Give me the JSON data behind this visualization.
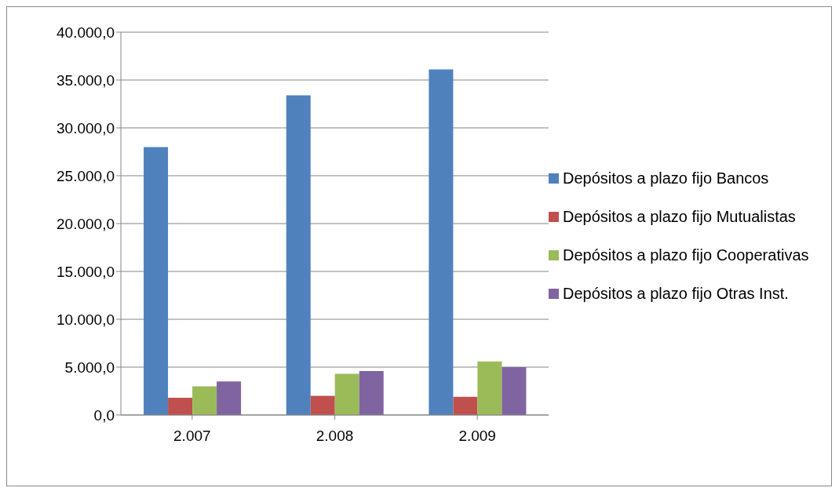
{
  "chart_data": {
    "type": "bar",
    "categories": [
      "2.007",
      "2.008",
      "2.009"
    ],
    "series": [
      {
        "name": "Depósitos a plazo fijo Bancos",
        "color": "#4f81bd",
        "values": [
          28000,
          33400,
          36100
        ]
      },
      {
        "name": "Depósitos a plazo fijo Mutualistas",
        "color": "#c0504d",
        "values": [
          1800,
          2000,
          1900
        ]
      },
      {
        "name": "Depósitos a plazo fijo Cooperativas",
        "color": "#9bbb59",
        "values": [
          3000,
          4300,
          5600
        ]
      },
      {
        "name": "Depósitos a plazo fijo Otras Inst.",
        "color": "#8064a2",
        "values": [
          3500,
          4600,
          5000
        ]
      }
    ],
    "ylim": [
      0,
      40000
    ],
    "yticks": [
      {
        "value": 0,
        "label": "0,0"
      },
      {
        "value": 5000,
        "label": "5.000,0"
      },
      {
        "value": 10000,
        "label": "10.000,0"
      },
      {
        "value": 15000,
        "label": "15.000,0"
      },
      {
        "value": 20000,
        "label": "20.000,0"
      },
      {
        "value": 25000,
        "label": "25.000,0"
      },
      {
        "value": 30000,
        "label": "30.000,0"
      },
      {
        "value": 35000,
        "label": "35.000,0"
      },
      {
        "value": 40000,
        "label": "40.000,0"
      }
    ],
    "grid": "y",
    "legend": "right"
  }
}
